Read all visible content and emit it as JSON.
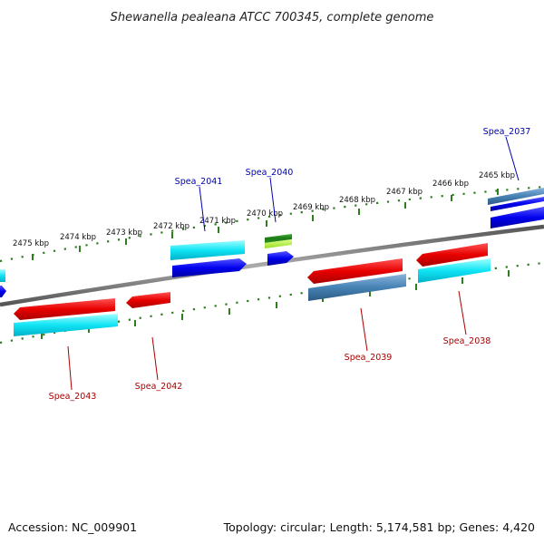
{
  "title": "Shewanella pealeana ATCC 700345, complete genome",
  "footer": {
    "accession": "Accession: NC_009901",
    "summary": "Topology: circular; Length: 5,174,581 bp; Genes: 4,420"
  },
  "kbp_labels": [
    "2475 kbp",
    "2474 kbp",
    "2473 kbp",
    "2472 kbp",
    "2471 kbp",
    "2470 kbp",
    "2469 kbp",
    "2468 kbp",
    "2467 kbp",
    "2466 kbp",
    "2465 kbp"
  ],
  "gene_labels": {
    "spea_2037": "Spea_2037",
    "spea_2038": "Spea_2038",
    "spea_2039": "Spea_2039",
    "spea_2040": "Spea_2040",
    "spea_2041": "Spea_2041",
    "spea_2042": "Spea_2042",
    "spea_2043": "Spea_2043"
  },
  "colors": {
    "backbone": "#808080",
    "ticks": "#2e7d1e",
    "cds_forward": "#1010e0",
    "cds_reverse": "#e01010",
    "rna_cyan": "#20e0f0",
    "steel_blue": "#4682b4",
    "rrna_green": "#2e8b22",
    "lime": "#aaee33",
    "label_forward": "#0000aa",
    "label_reverse": "#aa0000"
  }
}
